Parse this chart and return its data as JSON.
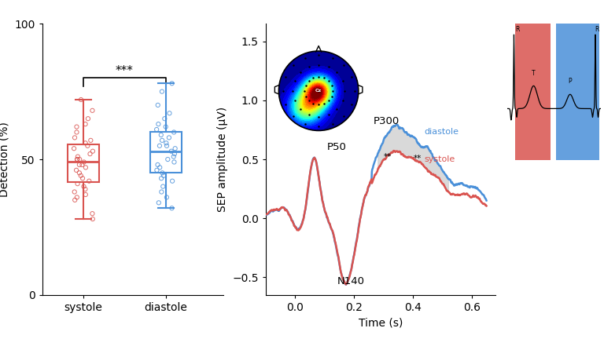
{
  "left_plot": {
    "systole_q1": 42,
    "systole_median": 50,
    "systole_q3": 58,
    "systole_whisker_low": 28,
    "systole_whisker_high": 72,
    "diastole_q1": 44,
    "diastole_median": 54,
    "diastole_q3": 62,
    "diastole_whisker_low": 30,
    "diastole_whisker_high": 78,
    "systole_scatter": [
      72,
      68,
      65,
      63,
      62,
      60,
      58,
      57,
      56,
      55,
      54,
      53,
      52,
      51,
      50,
      50,
      50,
      49,
      48,
      48,
      47,
      46,
      45,
      44,
      43,
      42,
      41,
      40,
      39,
      38,
      37,
      36,
      35,
      30,
      28
    ],
    "diastole_scatter": [
      78,
      75,
      70,
      67,
      65,
      63,
      62,
      61,
      60,
      59,
      58,
      57,
      56,
      55,
      55,
      54,
      53,
      52,
      51,
      50,
      49,
      48,
      47,
      46,
      45,
      44,
      43,
      42,
      40,
      38,
      36,
      34,
      32
    ],
    "systole_color": "#d9534f",
    "diastole_color": "#4a90d9",
    "ylabel": "Detection (%)",
    "xticks": [
      "systole",
      "diastole"
    ],
    "ylim": [
      0,
      100
    ],
    "significance": "***"
  },
  "right_plot": {
    "diastole_color": "#4a90d9",
    "systole_color": "#d9534f",
    "ylabel": "SEP amplitude (μV)",
    "xlabel": "Time (s)",
    "ylim": [
      -0.65,
      1.65
    ],
    "yticks": [
      -0.5,
      0.0,
      0.5,
      1.0,
      1.5
    ],
    "xticks": [
      0.0,
      0.2,
      0.4,
      0.6
    ],
    "legend_labels": [
      "diastole",
      "systole"
    ]
  }
}
